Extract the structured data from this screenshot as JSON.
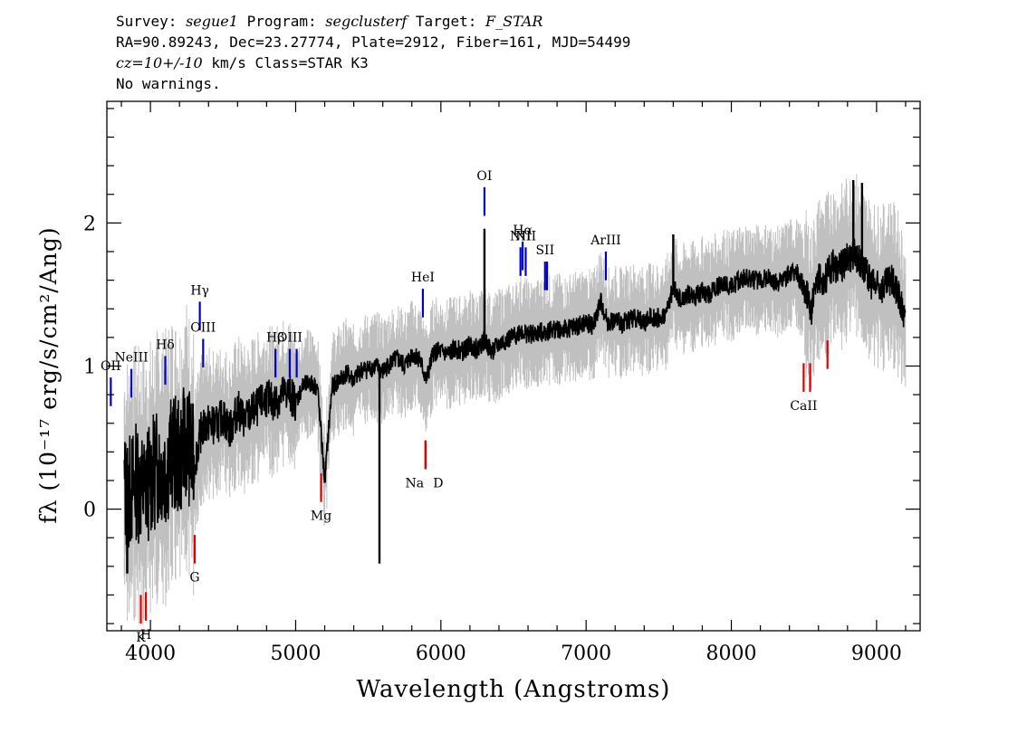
{
  "header": {
    "survey_label": "Survey:",
    "survey": "segue1",
    "program_label": "Program:",
    "program": "segclusterf",
    "target_label": "Target:",
    "target": "F_STAR",
    "line2": "RA=90.89243, Dec=23.27774, Plate=2912, Fiber=161, MJD=54499",
    "cz": "cz=10+/-10",
    "line3_rest": "km/s Class=STAR K3",
    "line4": "No warnings."
  },
  "chart_data": {
    "type": "line",
    "xlabel": "Wavelength (Angstroms)",
    "ylabel": "fλ (10⁻¹⁷ erg/s/cm²/Ang)",
    "xlim": [
      3700,
      9300
    ],
    "ylim": [
      -0.85,
      2.85
    ],
    "x_ticks": [
      4000,
      5000,
      6000,
      7000,
      8000,
      9000
    ],
    "y_ticks": [
      0,
      1,
      2
    ],
    "grid": false,
    "colors": {
      "flux": "#000000",
      "noise": "#c0c0c0",
      "emission": "#0000cc",
      "absorption": "#dd0000"
    },
    "series": [
      {
        "x": [
          3820,
          3850,
          3900,
          3950,
          4000,
          4050,
          4100,
          4150,
          4200,
          4250,
          4300,
          4350,
          4400,
          4450,
          4500,
          4550,
          4600,
          4650,
          4700,
          4750,
          4800,
          4850,
          4900,
          4950,
          5000,
          5050,
          5100,
          5150,
          5200,
          5250,
          5300,
          5350,
          5400,
          5450,
          5500,
          5550,
          5600,
          5650,
          5700,
          5750,
          5800,
          5850,
          5900,
          5950,
          6000,
          6050,
          6100,
          6150,
          6200,
          6250,
          6300,
          6350,
          6400,
          6450,
          6500,
          6550,
          6600,
          6650,
          6700,
          6750,
          6800,
          6850,
          6900,
          6950,
          7000,
          7050,
          7100,
          7150,
          7200,
          7250,
          7300,
          7350,
          7400,
          7450,
          7500,
          7550,
          7600,
          7650,
          7700,
          7750,
          7800,
          7850,
          7900,
          7950,
          8000,
          8050,
          8100,
          8150,
          8200,
          8250,
          8300,
          8350,
          8400,
          8450,
          8500,
          8550,
          8600,
          8650,
          8700,
          8750,
          8800,
          8850,
          8900,
          8950,
          9000,
          9050,
          9100,
          9150,
          9200
        ],
        "values": [
          0.15,
          0.1,
          0.2,
          0.12,
          0.22,
          0.3,
          0.28,
          0.4,
          0.35,
          0.5,
          0.3,
          0.55,
          0.6,
          0.58,
          0.65,
          0.55,
          0.7,
          0.62,
          0.68,
          0.72,
          0.78,
          0.74,
          0.8,
          0.82,
          0.75,
          0.86,
          0.88,
          0.85,
          0.2,
          0.85,
          0.9,
          0.95,
          0.9,
          0.97,
          0.98,
          1.0,
          0.96,
          1.02,
          1.05,
          1.0,
          1.08,
          1.06,
          0.9,
          1.1,
          1.1,
          1.08,
          1.12,
          1.1,
          1.15,
          1.12,
          1.18,
          1.1,
          1.15,
          1.18,
          1.2,
          1.25,
          1.22,
          1.22,
          1.24,
          1.25,
          1.26,
          1.25,
          1.27,
          1.28,
          1.3,
          1.28,
          1.45,
          1.3,
          1.32,
          1.3,
          1.33,
          1.34,
          1.3,
          1.35,
          1.33,
          1.36,
          1.55,
          1.45,
          1.5,
          1.48,
          1.52,
          1.5,
          1.55,
          1.58,
          1.55,
          1.6,
          1.62,
          1.6,
          1.6,
          1.62,
          1.58,
          1.6,
          1.65,
          1.65,
          1.55,
          1.4,
          1.6,
          1.62,
          1.7,
          1.68,
          1.75,
          1.8,
          1.7,
          1.6,
          1.55,
          1.55,
          1.6,
          1.5,
          1.3
        ]
      }
    ],
    "spikes": [
      {
        "x": 5577,
        "y": -0.38
      },
      {
        "x": 6300,
        "y": 1.96
      },
      {
        "x": 3840,
        "y": -0.45
      },
      {
        "x": 3870,
        "y": -0.2
      },
      {
        "x": 8840,
        "y": 2.3
      },
      {
        "x": 8900,
        "y": 2.28
      },
      {
        "x": 7600,
        "y": 1.92
      }
    ],
    "emission_lines": [
      {
        "label": "OII",
        "x": 3727,
        "ylow": 0.72,
        "yhigh": 0.92
      },
      {
        "label": "NeIII",
        "x": 3869,
        "ylow": 0.78,
        "yhigh": 0.98
      },
      {
        "label": "Hδ",
        "x": 4102,
        "ylow": 0.87,
        "yhigh": 1.07
      },
      {
        "label": "Hγ",
        "x": 4340,
        "ylow": 1.25,
        "yhigh": 1.45
      },
      {
        "label": "OIII",
        "x": 4363,
        "ylow": 0.99,
        "yhigh": 1.19
      },
      {
        "label": "Hβ",
        "x": 4861,
        "ylow": 0.92,
        "yhigh": 1.12
      },
      {
        "label": "OIII",
        "x": 4959,
        "ylow": 0.92,
        "yhigh": 1.12
      },
      {
        "label": "",
        "x": 5007,
        "ylow": 0.92,
        "yhigh": 1.12
      },
      {
        "label": "HeI",
        "x": 5876,
        "ylow": 1.34,
        "yhigh": 1.54
      },
      {
        "label": "OI",
        "x": 6300,
        "ylow": 2.05,
        "yhigh": 2.25
      },
      {
        "label": "NII",
        "x": 6548,
        "ylow": 1.63,
        "yhigh": 1.83
      },
      {
        "label": "Hα",
        "x": 6563,
        "ylow": 1.67,
        "yhigh": 1.87
      },
      {
        "label": "NII",
        "x": 6584,
        "ylow": 1.63,
        "yhigh": 1.83
      },
      {
        "label": "SII",
        "x": 6717,
        "ylow": 1.53,
        "yhigh": 1.73
      },
      {
        "label": "",
        "x": 6731,
        "ylow": 1.53,
        "yhigh": 1.73
      },
      {
        "label": "ArIII",
        "x": 7136,
        "ylow": 1.6,
        "yhigh": 1.8
      }
    ],
    "absorption_lines": [
      {
        "label": "K",
        "x": 3934,
        "ylow": -0.8,
        "yhigh": -0.6
      },
      {
        "label": "H",
        "x": 3969,
        "ylow": -0.78,
        "yhigh": -0.58
      },
      {
        "label": "G",
        "x": 4305,
        "ylow": -0.38,
        "yhigh": -0.18
      },
      {
        "label": "Mg",
        "x": 5175,
        "ylow": 0.05,
        "yhigh": 0.25
      },
      {
        "label": "Na",
        "x": 5894,
        "ylow": 0.28,
        "yhigh": 0.48
      },
      {
        "label": "D",
        "x": 5894,
        "ylow": 0.28,
        "yhigh": 0.48
      },
      {
        "label": "CaII",
        "x": 8498,
        "ylow": 0.82,
        "yhigh": 1.02
      },
      {
        "label": "",
        "x": 8542,
        "ylow": 0.82,
        "yhigh": 1.02
      },
      {
        "label": "",
        "x": 8662,
        "ylow": 0.98,
        "yhigh": 1.18
      }
    ]
  }
}
